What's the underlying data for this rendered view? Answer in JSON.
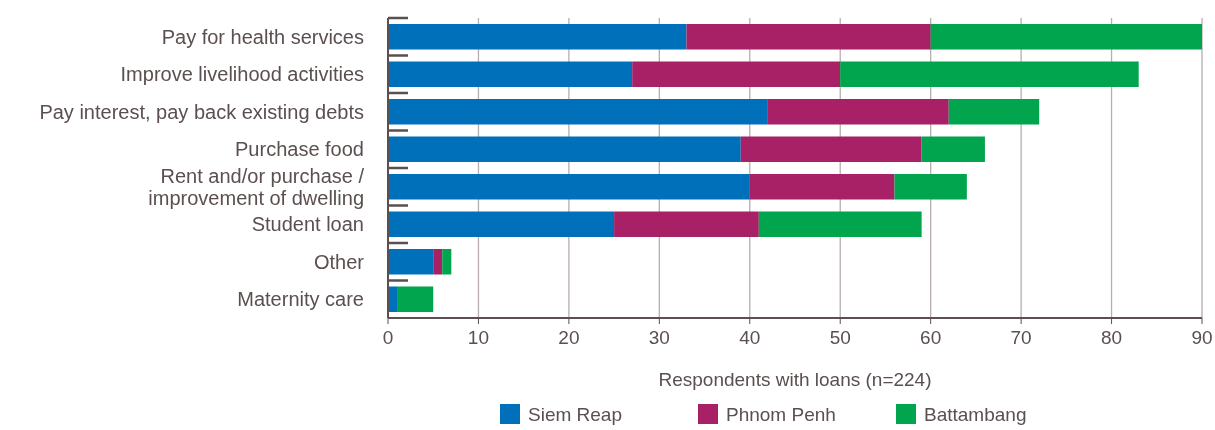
{
  "chart_data": {
    "type": "bar",
    "orientation": "horizontal",
    "stacked": true,
    "categories": [
      "Pay for health services",
      "Improve livelihood activities",
      "Pay interest, pay back existing debts",
      "Purchase food",
      "Rent and/or purchase / improvement of dwelling",
      "Student loan",
      "Other",
      "Maternity care"
    ],
    "series": [
      {
        "name": "Siem Reap",
        "color": "#0070bb",
        "values": [
          33,
          27,
          42,
          39,
          40,
          25,
          5,
          1
        ]
      },
      {
        "name": "Phnom Penh",
        "color": "#a82066",
        "values": [
          27,
          23,
          20,
          20,
          16,
          16,
          1,
          0
        ]
      },
      {
        "name": "Battambang",
        "color": "#00a54d",
        "values": [
          30,
          33,
          10,
          7,
          8,
          18,
          1,
          4
        ]
      }
    ],
    "xlabel": "Respondents with loans (n=224)",
    "xlim": [
      0,
      90
    ],
    "xticks": [
      0,
      10,
      20,
      30,
      40,
      50,
      60,
      70,
      80,
      90
    ],
    "grid": "x",
    "legend": "bottom"
  }
}
